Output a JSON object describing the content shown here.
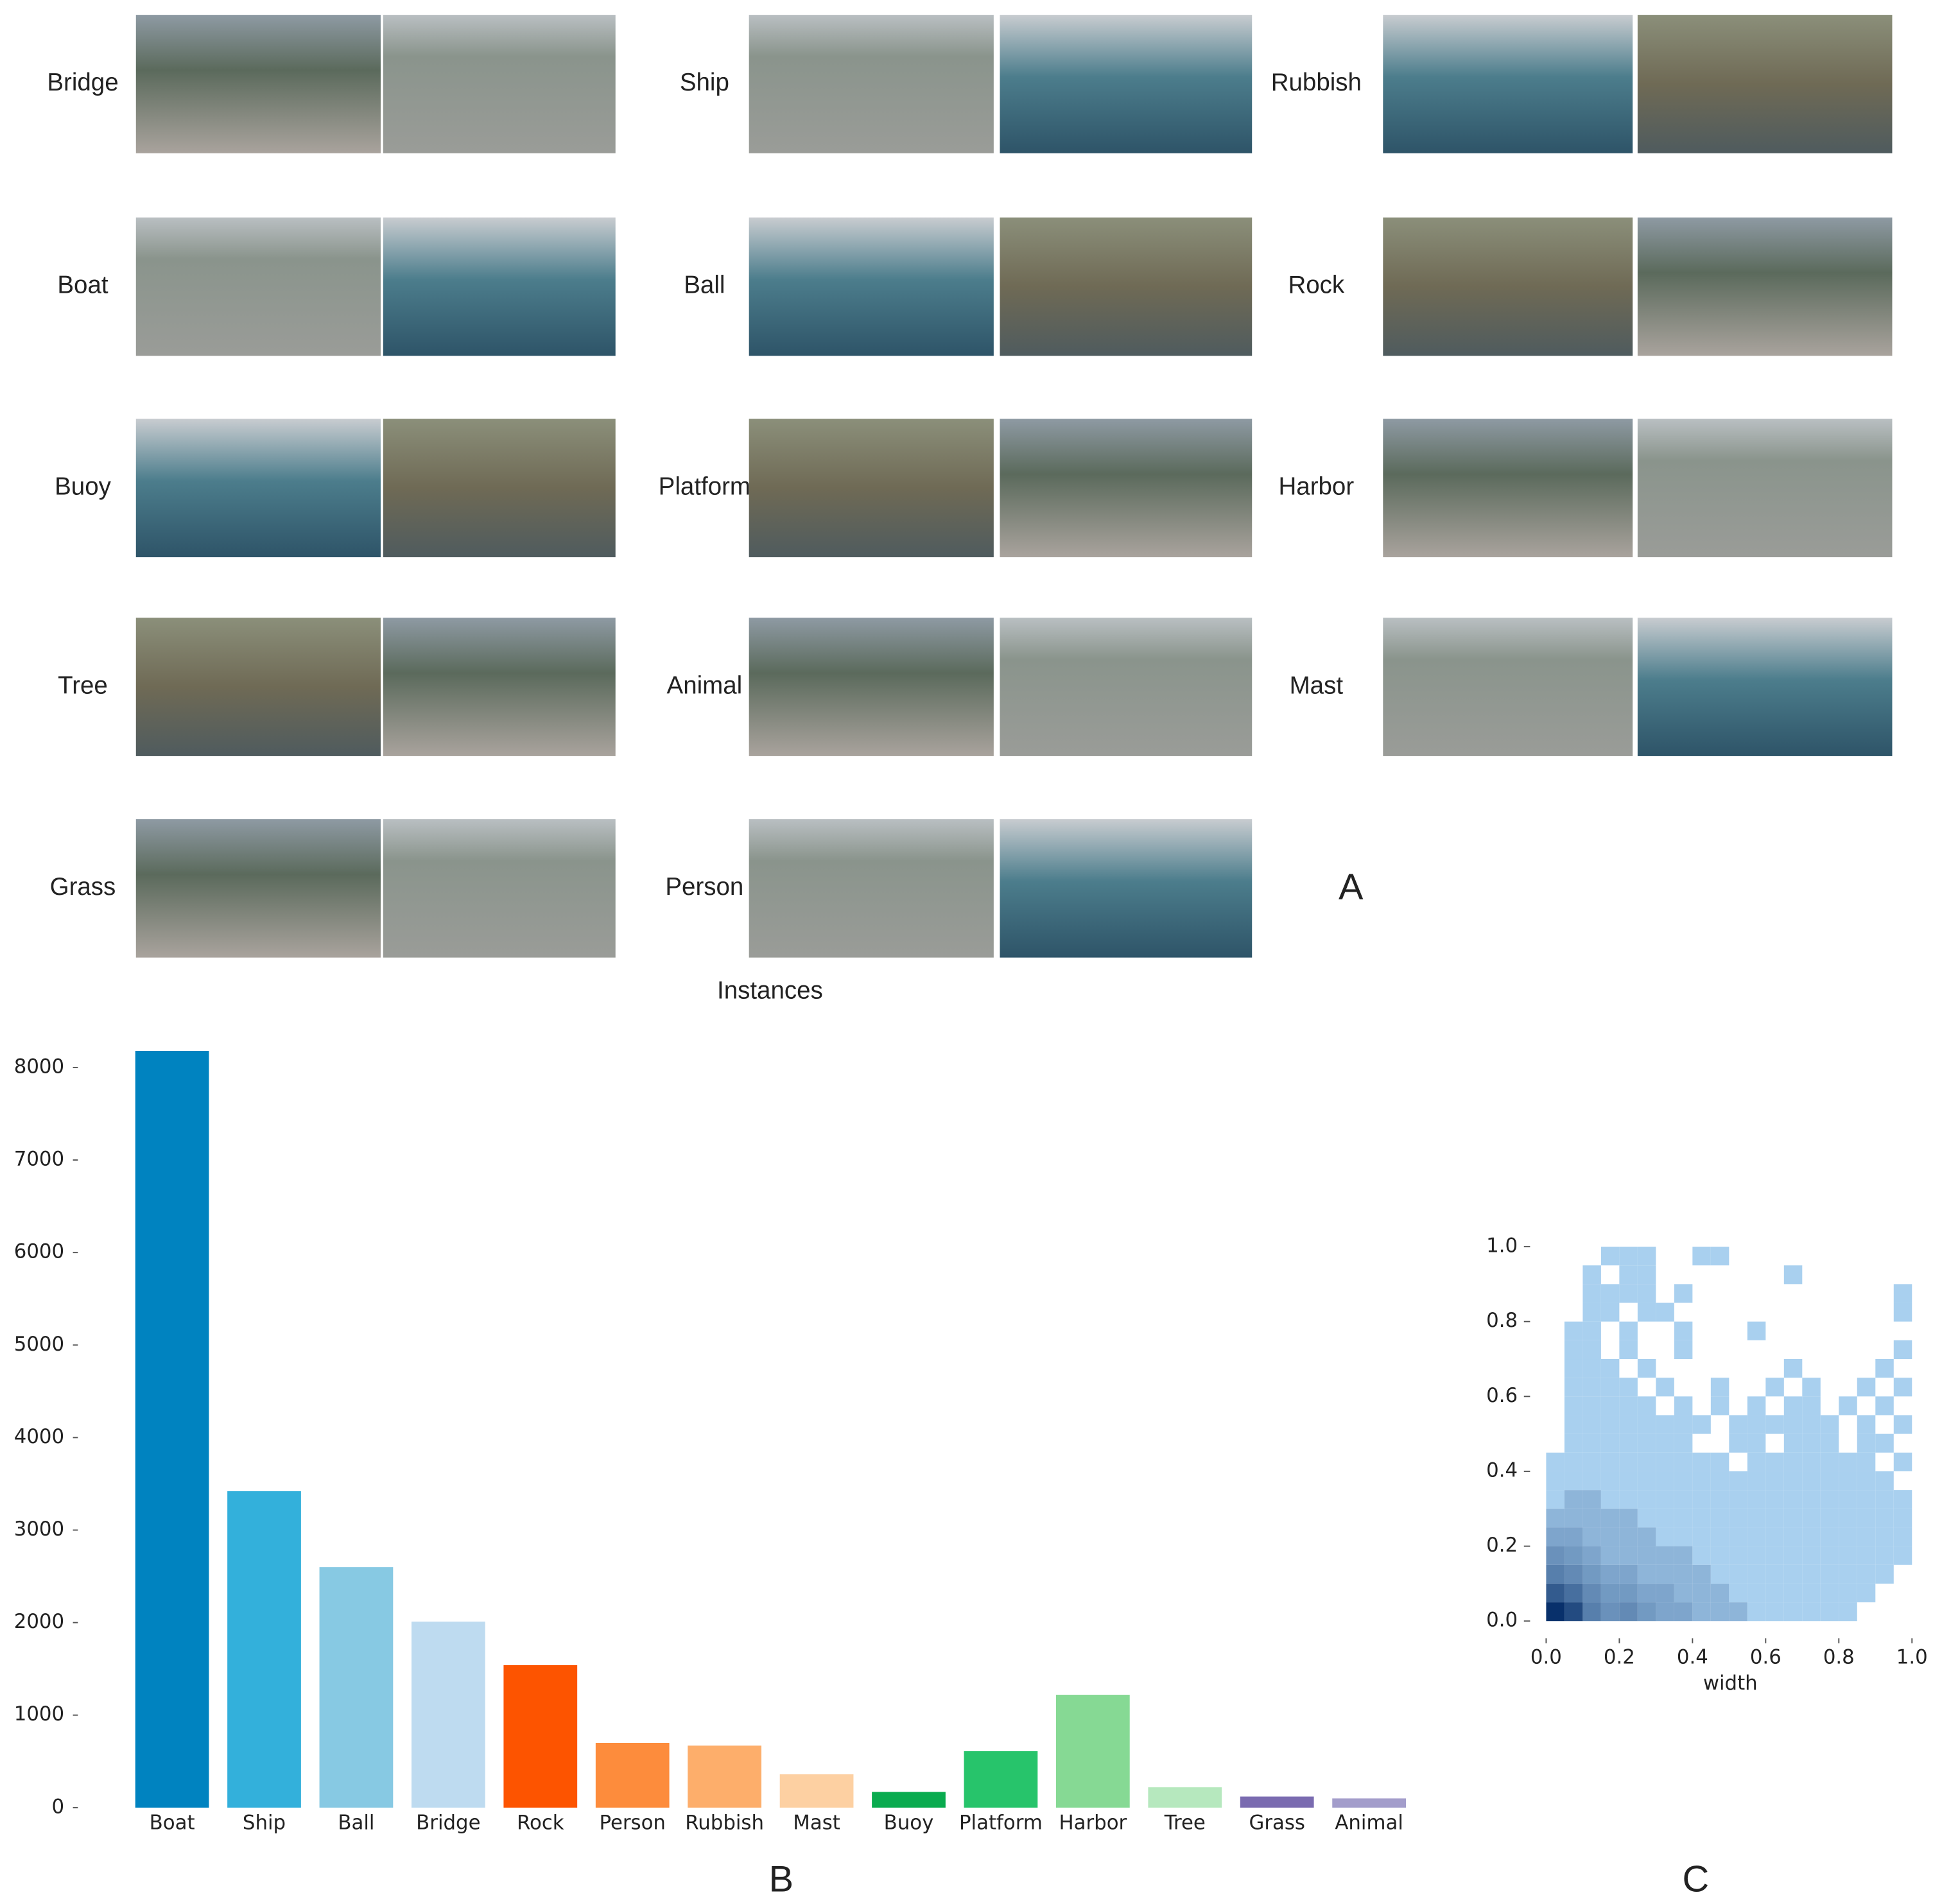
{
  "gallery": {
    "columns": [
      [
        "Bridge",
        "Boat",
        "Buoy",
        "Tree",
        "Grass"
      ],
      [
        "Ship",
        "Ball",
        "Platform",
        "Animal",
        "Person"
      ],
      [
        "Rubbish",
        "Rock",
        "Harbor",
        "Mast"
      ]
    ],
    "panel_label": "A"
  },
  "chart_data": [
    {
      "type": "bar",
      "title": "Instances",
      "panel_label": "B",
      "categories": [
        "Boat",
        "Ship",
        "Ball",
        "Bridge",
        "Rock",
        "Person",
        "Rubbish",
        "Mast",
        "Buoy",
        "Platform",
        "Harbor",
        "Tree",
        "Grass",
        "Animal"
      ],
      "values": [
        8180,
        3420,
        2600,
        2010,
        1540,
        700,
        670,
        360,
        170,
        610,
        1220,
        220,
        120,
        100
      ],
      "colors": [
        "#0083c0",
        "#33b0db",
        "#87c9e3",
        "#bedbf0",
        "#fd5400",
        "#fd8c3c",
        "#fdae6b",
        "#fdd0a2",
        "#0aab4f",
        "#27c46b",
        "#86d994",
        "#b6e8be",
        "#7a6bb0",
        "#a39dcb"
      ],
      "ylim": [
        0,
        8200
      ],
      "yticks": [
        0,
        1000,
        2000,
        3000,
        4000,
        5000,
        6000,
        7000,
        8000
      ]
    },
    {
      "type": "histogram2d",
      "panel_label": "C",
      "xlabel": "width",
      "xbins": [
        0,
        0.05,
        0.1,
        0.15,
        0.2,
        0.25,
        0.3,
        0.35,
        0.4,
        0.45,
        0.5,
        0.55,
        0.6,
        0.65,
        0.7,
        0.75,
        0.8,
        0.85,
        0.9,
        0.95,
        1
      ],
      "ybins": [
        0,
        0.05,
        0.1,
        0.15,
        0.2,
        0.25,
        0.3,
        0.35,
        0.4,
        0.45,
        0.5,
        0.55,
        0.6,
        0.65,
        0.7,
        0.75,
        0.8,
        0.85,
        0.9,
        0.95,
        1
      ],
      "counts": [
        [
          60,
          30,
          8,
          5,
          6,
          4,
          3,
          3,
          2,
          2,
          2,
          1,
          1,
          1,
          1,
          1,
          1,
          0,
          0,
          0
        ],
        [
          20,
          12,
          6,
          4,
          4,
          3,
          3,
          2,
          2,
          2,
          1,
          1,
          1,
          1,
          1,
          1,
          1,
          1,
          0,
          0
        ],
        [
          8,
          6,
          4,
          3,
          3,
          2,
          2,
          2,
          2,
          1,
          1,
          1,
          1,
          1,
          1,
          1,
          1,
          1,
          1,
          0
        ],
        [
          5,
          4,
          3,
          2,
          2,
          2,
          2,
          2,
          1,
          1,
          1,
          1,
          1,
          1,
          1,
          1,
          1,
          1,
          1,
          1
        ],
        [
          3,
          3,
          2,
          2,
          2,
          2,
          1,
          1,
          1,
          1,
          1,
          1,
          1,
          1,
          1,
          1,
          1,
          1,
          1,
          1
        ],
        [
          2,
          2,
          2,
          2,
          2,
          1,
          1,
          1,
          1,
          1,
          1,
          1,
          1,
          1,
          1,
          1,
          1,
          1,
          1,
          1
        ],
        [
          1,
          2,
          2,
          1,
          1,
          1,
          1,
          1,
          1,
          1,
          1,
          1,
          1,
          1,
          1,
          1,
          1,
          1,
          1,
          1
        ],
        [
          1,
          1,
          1,
          1,
          1,
          1,
          1,
          1,
          1,
          1,
          1,
          1,
          1,
          1,
          1,
          1,
          1,
          1,
          1,
          0
        ],
        [
          1,
          1,
          1,
          1,
          1,
          1,
          1,
          1,
          1,
          1,
          0,
          1,
          1,
          1,
          1,
          1,
          1,
          1,
          0,
          1
        ],
        [
          0,
          1,
          1,
          1,
          1,
          1,
          1,
          1,
          0,
          0,
          1,
          1,
          0,
          1,
          1,
          1,
          0,
          1,
          1,
          0
        ],
        [
          0,
          1,
          1,
          1,
          1,
          1,
          1,
          1,
          1,
          0,
          1,
          1,
          1,
          1,
          1,
          1,
          0,
          1,
          0,
          1
        ],
        [
          0,
          1,
          1,
          1,
          1,
          1,
          0,
          1,
          0,
          1,
          0,
          1,
          0,
          1,
          1,
          0,
          1,
          0,
          1,
          0
        ],
        [
          0,
          1,
          1,
          1,
          1,
          0,
          1,
          0,
          0,
          1,
          0,
          0,
          1,
          0,
          1,
          0,
          0,
          1,
          0,
          1
        ],
        [
          0,
          1,
          1,
          1,
          0,
          1,
          0,
          0,
          0,
          0,
          0,
          0,
          0,
          1,
          0,
          0,
          0,
          0,
          1,
          0
        ],
        [
          0,
          1,
          1,
          0,
          1,
          0,
          0,
          1,
          0,
          0,
          0,
          0,
          0,
          0,
          0,
          0,
          0,
          0,
          0,
          1
        ],
        [
          0,
          1,
          1,
          0,
          1,
          0,
          0,
          1,
          0,
          0,
          0,
          1,
          0,
          0,
          0,
          0,
          0,
          0,
          0,
          0
        ],
        [
          0,
          0,
          1,
          1,
          0,
          1,
          1,
          0,
          0,
          0,
          0,
          0,
          0,
          0,
          0,
          0,
          0,
          0,
          0,
          1
        ],
        [
          0,
          0,
          1,
          1,
          1,
          1,
          0,
          1,
          0,
          0,
          0,
          0,
          0,
          0,
          0,
          0,
          0,
          0,
          0,
          1
        ],
        [
          0,
          0,
          1,
          0,
          1,
          1,
          0,
          0,
          0,
          0,
          0,
          0,
          0,
          1,
          0,
          0,
          0,
          0,
          0,
          0
        ],
        [
          0,
          0,
          0,
          1,
          1,
          1,
          0,
          0,
          1,
          1,
          0,
          0,
          0,
          0,
          0,
          0,
          0,
          0,
          0,
          0
        ]
      ],
      "cmap": [
        "#a9d0ef",
        "#08306b"
      ],
      "xlim": [
        0,
        1
      ],
      "ylim": [
        0,
        1
      ],
      "xticks": [
        {
          "value": 0,
          "label": "0.0"
        },
        {
          "value": 0.2,
          "label": "0.2"
        },
        {
          "value": 0.4,
          "label": "0.4"
        },
        {
          "value": 0.6,
          "label": "0.6"
        },
        {
          "value": 0.8,
          "label": "0.8"
        },
        {
          "value": 1,
          "label": "1.0"
        }
      ],
      "yticks": [
        {
          "value": 0,
          "label": "0.0"
        },
        {
          "value": 0.2,
          "label": "0.2"
        },
        {
          "value": 0.4,
          "label": "0.4"
        },
        {
          "value": 0.6,
          "label": "0.6"
        },
        {
          "value": 0.8,
          "label": "0.8"
        },
        {
          "value": 1,
          "label": "1.0"
        }
      ]
    }
  ]
}
